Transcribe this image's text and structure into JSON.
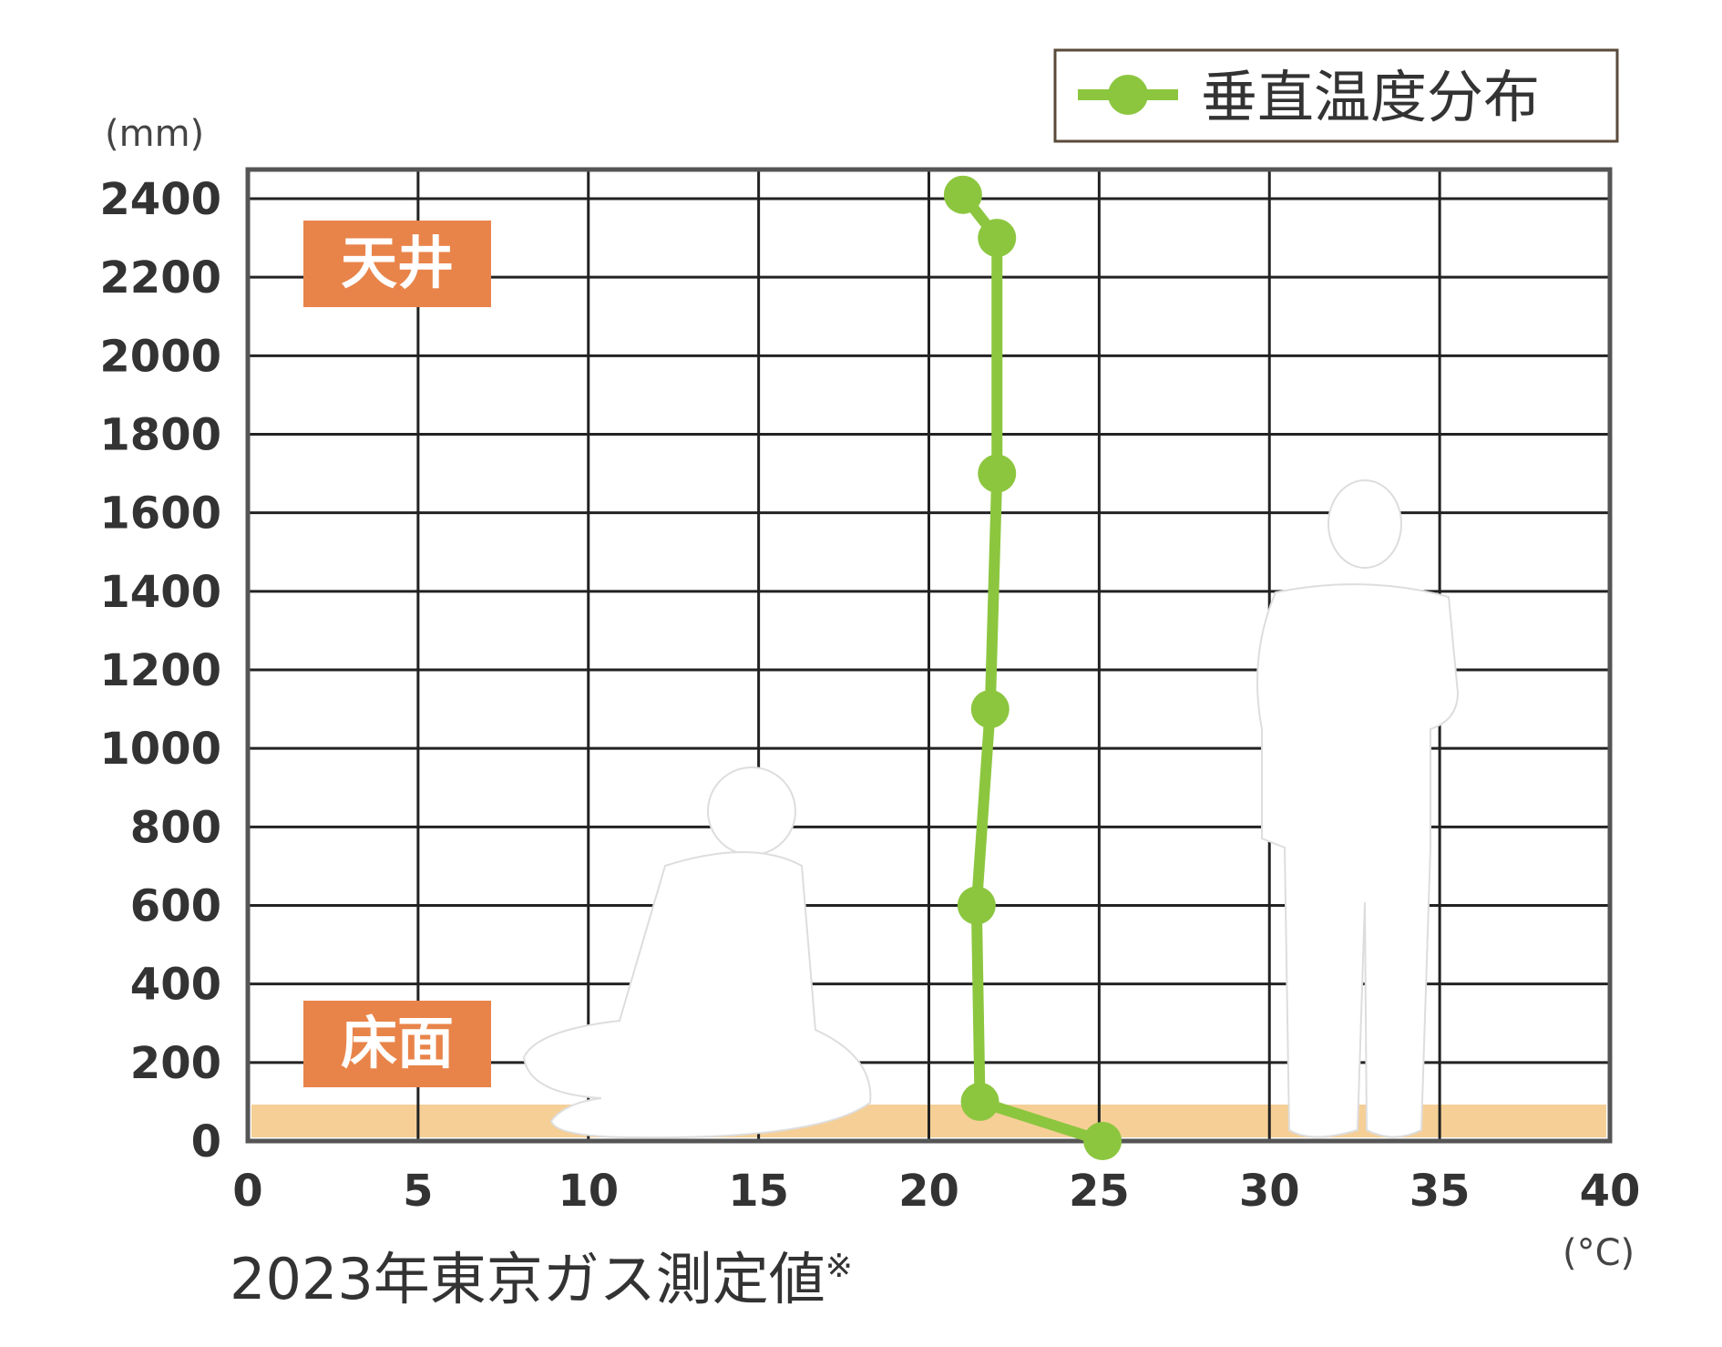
{
  "chart_data": {
    "type": "line",
    "x_unit": "(°C)",
    "y_unit": "(mm)",
    "xlim": [
      0,
      40
    ],
    "ylim": [
      0,
      2400
    ],
    "x_ticks": [
      "0",
      "5",
      "10",
      "15",
      "20",
      "25",
      "30",
      "35",
      "40"
    ],
    "y_ticks": [
      "0",
      "200",
      "400",
      "600",
      "800",
      "1000",
      "1200",
      "1400",
      "1600",
      "1800",
      "2000",
      "2200",
      "2400"
    ],
    "grid": true,
    "legend_position": "top-right",
    "series": [
      {
        "name": "垂直温度分布",
        "color": "#8cc63f",
        "points": [
          {
            "x": 25.1,
            "y": 0
          },
          {
            "x": 21.5,
            "y": 100
          },
          {
            "x": 21.4,
            "y": 600
          },
          {
            "x": 21.8,
            "y": 1100
          },
          {
            "x": 22.0,
            "y": 1700
          },
          {
            "x": 22.0,
            "y": 2300
          },
          {
            "x": 21.0,
            "y": 2410
          }
        ]
      }
    ],
    "annotations": {
      "ceiling_label": "天井",
      "floor_label": "床面",
      "label_color": "#e8844a",
      "floor_band_color": "#f6cf96"
    }
  },
  "caption": {
    "text": "2023年東京ガス測定値",
    "note_mark": "※"
  }
}
